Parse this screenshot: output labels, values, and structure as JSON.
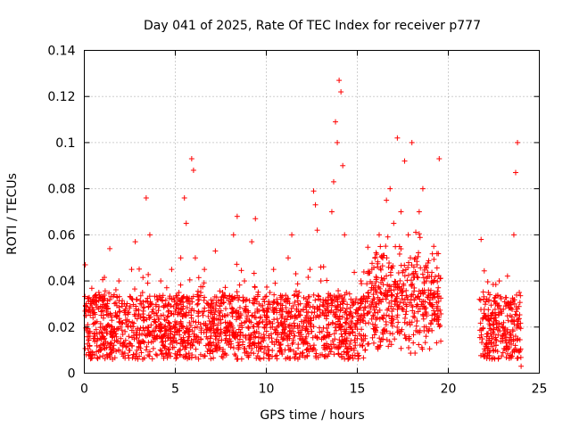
{
  "chart_data": {
    "type": "scatter",
    "title": "Day 041 of 2025, Rate Of TEC Index for receiver p777",
    "xlabel": "GPS time / hours",
    "ylabel": "ROTI / TECUs",
    "xlim": [
      0,
      25
    ],
    "ylim": [
      0,
      0.14
    ],
    "xticks": [
      0,
      5,
      10,
      15,
      20,
      25
    ],
    "xtick_labels": [
      "0",
      "5",
      "10",
      "15",
      "20",
      "25"
    ],
    "yticks": [
      0,
      0.02,
      0.04,
      0.06,
      0.08,
      0.1,
      0.12,
      0.14
    ],
    "ytick_labels": [
      "0",
      "0.02",
      "0.04",
      "0.06",
      "0.08",
      "0.1",
      "0.12",
      "0.14"
    ],
    "grid": true,
    "marker": "+",
    "color": "#ff0000",
    "data_gaps_hours": [
      [
        19.6,
        21.7
      ]
    ],
    "series": [
      {
        "name": "ROTI",
        "points": [
          [
            0.05,
            0.047
          ],
          [
            0.1,
            0.025
          ],
          [
            0.2,
            0.018
          ],
          [
            0.3,
            0.012
          ],
          [
            0.4,
            0.03
          ],
          [
            0.5,
            0.015
          ],
          [
            0.6,
            0.022
          ],
          [
            0.8,
            0.035
          ],
          [
            0.9,
            0.01
          ],
          [
            1.0,
            0.02
          ],
          [
            1.2,
            0.028
          ],
          [
            1.4,
            0.054
          ],
          [
            1.5,
            0.018
          ],
          [
            1.7,
            0.025
          ],
          [
            1.9,
            0.04
          ],
          [
            2.0,
            0.015
          ],
          [
            2.2,
            0.03
          ],
          [
            2.4,
            0.02
          ],
          [
            2.6,
            0.045
          ],
          [
            2.8,
            0.057
          ],
          [
            3.0,
            0.025
          ],
          [
            3.2,
            0.035
          ],
          [
            3.4,
            0.076
          ],
          [
            3.5,
            0.02
          ],
          [
            3.6,
            0.06
          ],
          [
            3.7,
            0.03
          ],
          [
            3.9,
            0.015
          ],
          [
            4.0,
            0.025
          ],
          [
            4.2,
            0.04
          ],
          [
            4.4,
            0.02
          ],
          [
            4.6,
            0.03
          ],
          [
            4.8,
            0.045
          ],
          [
            5.0,
            0.02
          ],
          [
            5.2,
            0.035
          ],
          [
            5.3,
            0.05
          ],
          [
            5.5,
            0.076
          ],
          [
            5.6,
            0.065
          ],
          [
            5.8,
            0.03
          ],
          [
            5.9,
            0.093
          ],
          [
            6.0,
            0.088
          ],
          [
            6.1,
            0.05
          ],
          [
            6.2,
            0.02
          ],
          [
            6.4,
            0.035
          ],
          [
            6.6,
            0.045
          ],
          [
            6.8,
            0.03
          ],
          [
            7.0,
            0.02
          ],
          [
            7.2,
            0.053
          ],
          [
            7.4,
            0.025
          ],
          [
            7.6,
            0.035
          ],
          [
            7.8,
            0.015
          ],
          [
            8.0,
            0.03
          ],
          [
            8.2,
            0.06
          ],
          [
            8.4,
            0.068
          ],
          [
            8.6,
            0.025
          ],
          [
            8.8,
            0.04
          ],
          [
            9.0,
            0.02
          ],
          [
            9.2,
            0.057
          ],
          [
            9.4,
            0.067
          ],
          [
            9.6,
            0.03
          ],
          [
            9.8,
            0.015
          ],
          [
            10.0,
            0.025
          ],
          [
            10.2,
            0.035
          ],
          [
            10.4,
            0.045
          ],
          [
            10.6,
            0.02
          ],
          [
            10.8,
            0.03
          ],
          [
            11.0,
            0.015
          ],
          [
            11.2,
            0.05
          ],
          [
            11.4,
            0.06
          ],
          [
            11.6,
            0.025
          ],
          [
            11.8,
            0.035
          ],
          [
            12.0,
            0.02
          ],
          [
            12.2,
            0.03
          ],
          [
            12.4,
            0.045
          ],
          [
            12.6,
            0.079
          ],
          [
            12.7,
            0.073
          ],
          [
            12.8,
            0.062
          ],
          [
            13.0,
            0.04
          ],
          [
            13.2,
            0.025
          ],
          [
            13.4,
            0.03
          ],
          [
            13.6,
            0.07
          ],
          [
            13.7,
            0.083
          ],
          [
            13.8,
            0.109
          ],
          [
            13.9,
            0.1
          ],
          [
            14.0,
            0.127
          ],
          [
            14.1,
            0.122
          ],
          [
            14.2,
            0.09
          ],
          [
            14.3,
            0.06
          ],
          [
            14.4,
            0.035
          ],
          [
            14.6,
            0.02
          ],
          [
            14.8,
            0.03
          ],
          [
            15.0,
            0.015
          ],
          [
            15.2,
            0.04
          ],
          [
            15.4,
            0.025
          ],
          [
            15.6,
            0.035
          ],
          [
            15.8,
            0.045
          ],
          [
            16.0,
            0.03
          ],
          [
            16.2,
            0.06
          ],
          [
            16.4,
            0.05
          ],
          [
            16.6,
            0.075
          ],
          [
            16.8,
            0.08
          ],
          [
            17.0,
            0.065
          ],
          [
            17.2,
            0.102
          ],
          [
            17.4,
            0.07
          ],
          [
            17.6,
            0.092
          ],
          [
            17.8,
            0.06
          ],
          [
            18.0,
            0.1
          ],
          [
            18.2,
            0.05
          ],
          [
            18.4,
            0.07
          ],
          [
            18.6,
            0.08
          ],
          [
            18.8,
            0.04
          ],
          [
            19.0,
            0.03
          ],
          [
            19.2,
            0.055
          ],
          [
            19.4,
            0.025
          ],
          [
            19.5,
            0.093
          ],
          [
            21.8,
            0.058
          ],
          [
            22.0,
            0.025
          ],
          [
            22.2,
            0.035
          ],
          [
            22.4,
            0.015
          ],
          [
            22.6,
            0.03
          ],
          [
            22.8,
            0.04
          ],
          [
            23.0,
            0.02
          ],
          [
            23.2,
            0.03
          ],
          [
            23.4,
            0.025
          ],
          [
            23.6,
            0.06
          ],
          [
            23.7,
            0.087
          ],
          [
            23.8,
            0.1
          ],
          [
            23.9,
            0.035
          ],
          [
            24.0,
            0.003
          ]
        ]
      }
    ]
  }
}
